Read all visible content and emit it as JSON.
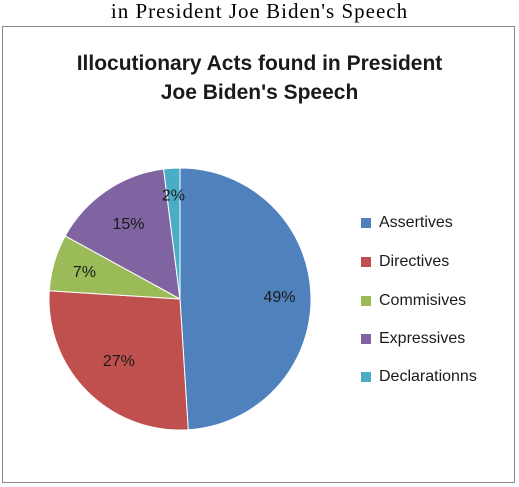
{
  "caption": "in President Joe Biden's Speech",
  "chart_data": {
    "type": "pie",
    "title_lines": [
      "Illocutionary Acts found in President",
      "Joe Biden's Speech"
    ],
    "slices": [
      {
        "label": "Assertives",
        "value": 49,
        "display": "49%",
        "color": "#4f81bd"
      },
      {
        "label": "Directives",
        "value": 27,
        "display": "27%",
        "color": "#c0504d"
      },
      {
        "label": "Commisives",
        "value": 7,
        "display": "7%",
        "color": "#9bbb59"
      },
      {
        "label": "Expressives",
        "value": 15,
        "display": "15%",
        "color": "#8064a2"
      },
      {
        "label": "Declarationns",
        "value": 2,
        "display": "2%",
        "color": "#4bacc6"
      }
    ],
    "legend_position": "right"
  }
}
